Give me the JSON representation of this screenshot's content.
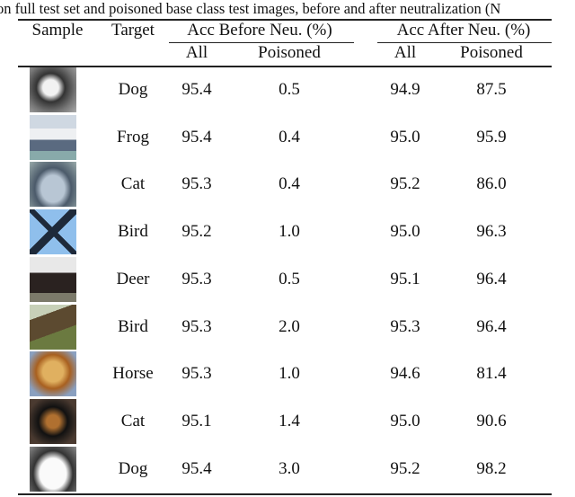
{
  "caption": "on full test set and poisoned base class test images, before and after neutralization (N",
  "header": {
    "sample": "Sample",
    "target": "Target",
    "before": "Acc Before Neu. (%)",
    "after": "Acc After Neu. (%)",
    "all": "All",
    "poisoned": "Poisoned"
  },
  "rows": [
    {
      "image": "cat-image",
      "target": "Dog",
      "before_all": "95.4",
      "before_poisoned": "0.5",
      "after_all": "94.9",
      "after_poisoned": "87.5"
    },
    {
      "image": "boat-image",
      "target": "Frog",
      "before_all": "95.4",
      "before_poisoned": "0.4",
      "after_all": "95.0",
      "after_poisoned": "95.9"
    },
    {
      "image": "car-image",
      "target": "Cat",
      "before_all": "95.3",
      "before_poisoned": "0.4",
      "after_all": "95.2",
      "after_poisoned": "86.0"
    },
    {
      "image": "airplane-image",
      "target": "Bird",
      "before_all": "95.2",
      "before_poisoned": "1.0",
      "after_all": "95.0",
      "after_poisoned": "96.3"
    },
    {
      "image": "horse-image",
      "target": "Deer",
      "before_all": "95.3",
      "before_poisoned": "0.5",
      "after_all": "95.1",
      "after_poisoned": "96.4"
    },
    {
      "image": "truck-image",
      "target": "Bird",
      "before_all": "95.3",
      "before_poisoned": "2.0",
      "after_all": "95.3",
      "after_poisoned": "96.4"
    },
    {
      "image": "dog-image",
      "target": "Horse",
      "before_all": "95.3",
      "before_poisoned": "1.0",
      "after_all": "94.6",
      "after_poisoned": "81.4"
    },
    {
      "image": "dog-image",
      "target": "Cat",
      "before_all": "95.1",
      "before_poisoned": "1.4",
      "after_all": "95.0",
      "after_poisoned": "90.6"
    },
    {
      "image": "car-image",
      "target": "Dog",
      "before_all": "95.4",
      "before_poisoned": "3.0",
      "after_all": "95.2",
      "after_poisoned": "98.2"
    }
  ]
}
